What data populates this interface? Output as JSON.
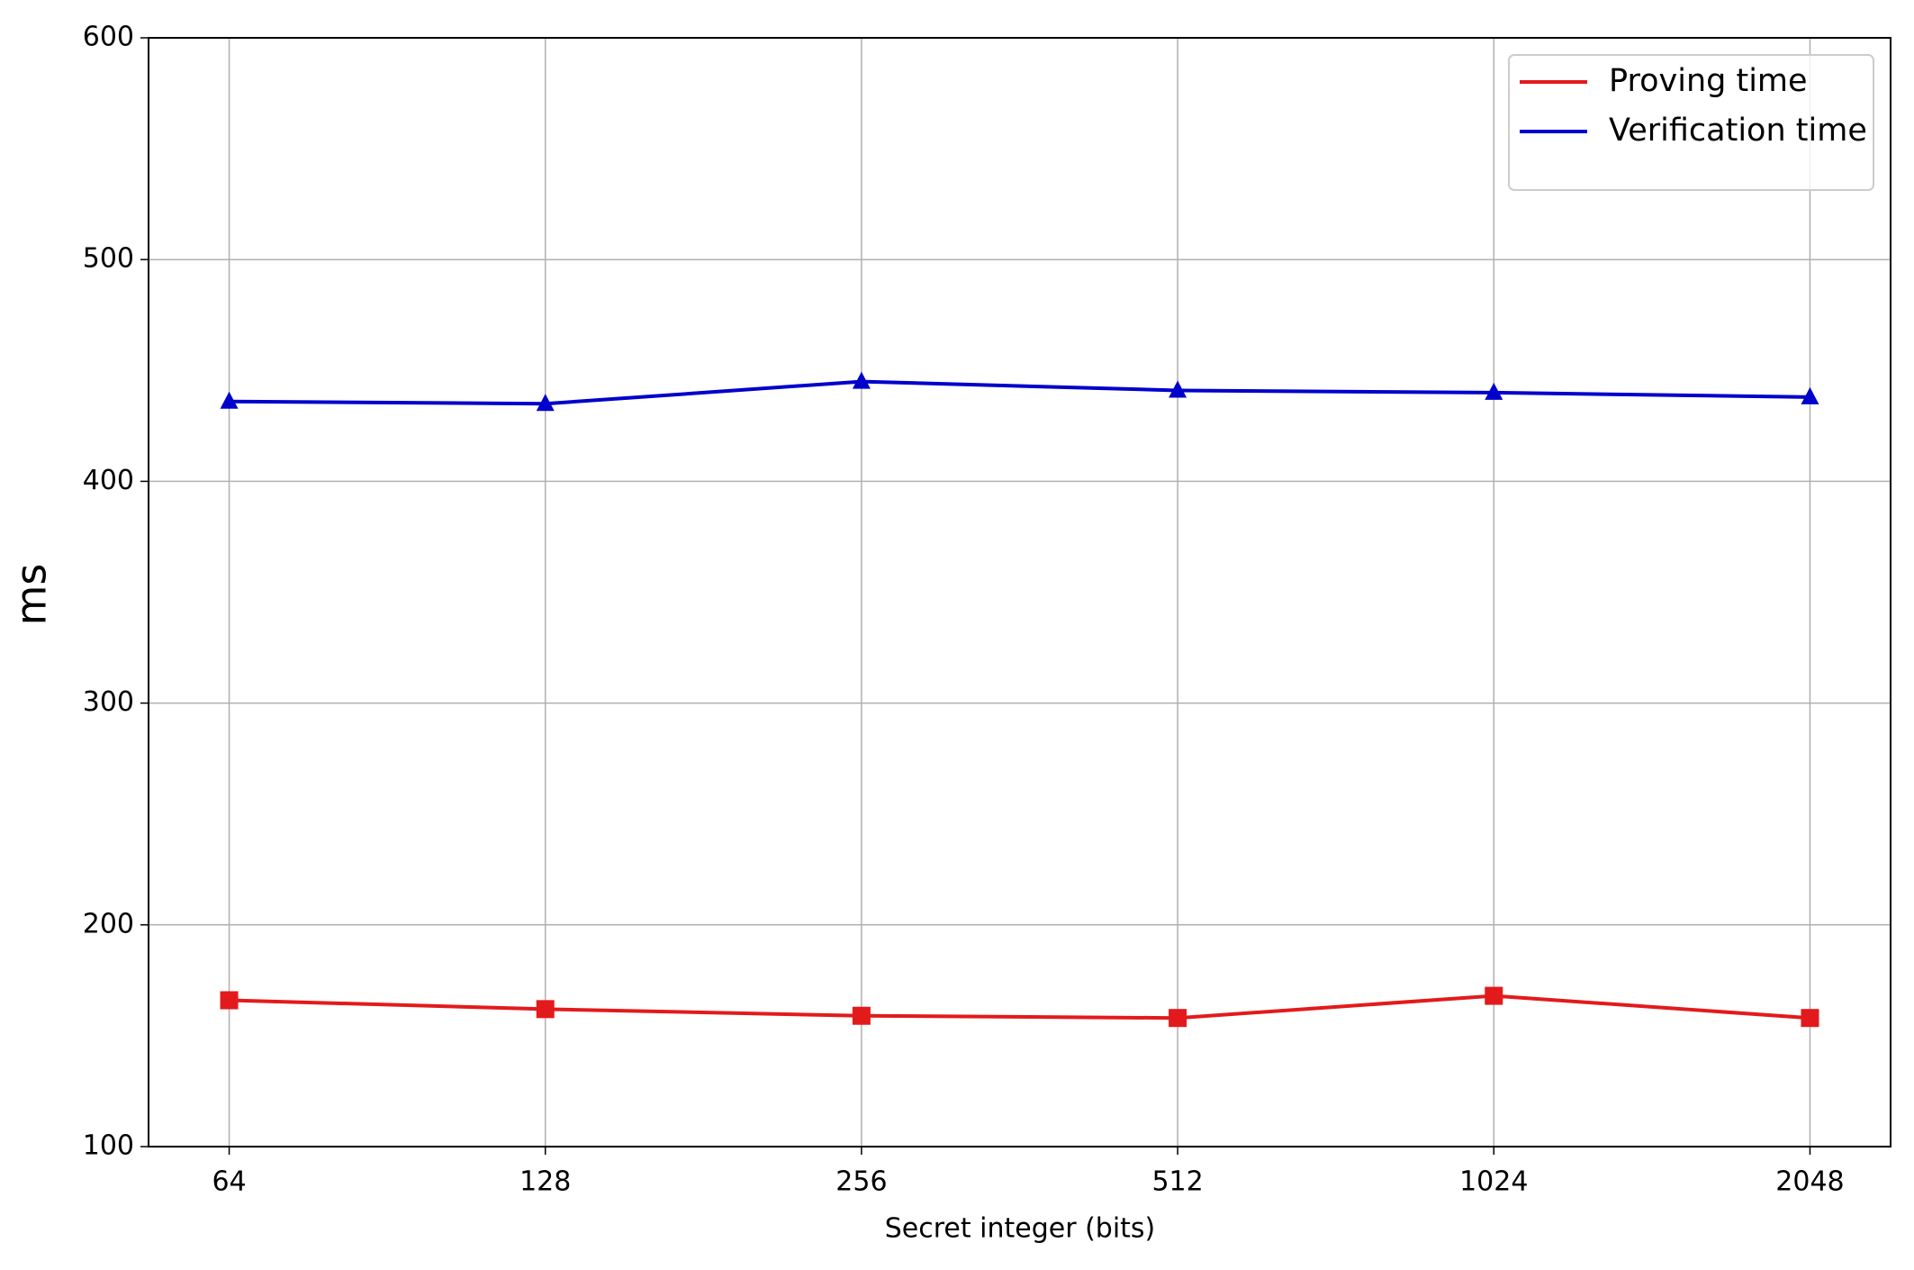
{
  "chart_data": {
    "type": "line",
    "x_label": "Secret integer (bits)",
    "y_label": "ms",
    "categories": [
      "64",
      "128",
      "256",
      "512",
      "1024",
      "2048"
    ],
    "series": [
      {
        "name": "Proving time",
        "color": "#e31a1c",
        "marker": "square",
        "values": [
          166,
          162,
          159,
          158,
          168,
          158
        ]
      },
      {
        "name": "Verification time",
        "color": "#0000cc",
        "marker": "triangle",
        "values": [
          436,
          435,
          445,
          441,
          440,
          438
        ]
      }
    ],
    "ylim": [
      100,
      600
    ],
    "yticks": [
      100,
      200,
      300,
      400,
      500,
      600
    ],
    "grid": true,
    "legend": "upper right"
  }
}
